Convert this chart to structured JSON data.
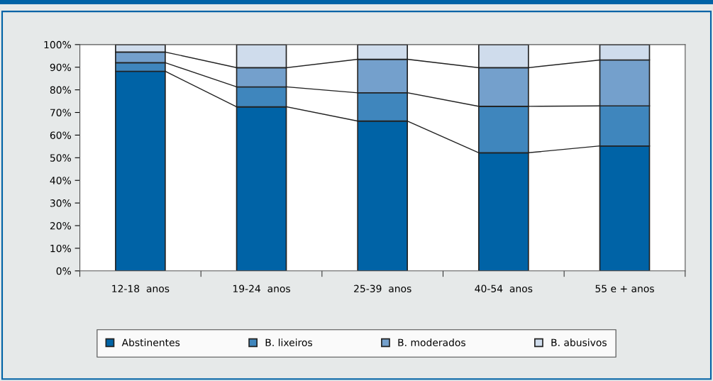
{
  "chart_data": {
    "type": "bar",
    "stacked": true,
    "categories": [
      "12-18  anos",
      "19-24  anos",
      "25-39  anos",
      "40-54  anos",
      "55 e + anos"
    ],
    "series": [
      {
        "name": "Abstinentes",
        "color": "#0063a6",
        "values": [
          88.2,
          72.5,
          66.2,
          52.2,
          55.2
        ]
      },
      {
        "name": "B. lixeiros",
        "color": "#3f86bd",
        "values": [
          3.8,
          8.8,
          12.5,
          20.5,
          17.7
        ]
      },
      {
        "name": "B. moderados",
        "color": "#74a0cc",
        "values": [
          4.7,
          8.5,
          14.8,
          17.1,
          20.3
        ]
      },
      {
        "name": "B. abusivos",
        "color": "#cfdcec",
        "values": [
          3.3,
          10.2,
          6.5,
          10.2,
          6.8
        ]
      }
    ],
    "ylim": [
      0,
      100
    ],
    "yticks": [
      {
        "value": 0,
        "label": "0%"
      },
      {
        "value": 10,
        "label": "10%"
      },
      {
        "value": 20,
        "label": "20%"
      },
      {
        "value": 30,
        "label": "30%"
      },
      {
        "value": 40,
        "label": "40%"
      },
      {
        "value": 50,
        "label": "50%"
      },
      {
        "value": 60,
        "label": "60%"
      },
      {
        "value": 70,
        "label": "70%"
      },
      {
        "value": 80,
        "label": "80%"
      },
      {
        "value": 90,
        "label": "90%"
      },
      {
        "value": 100,
        "label": "100%"
      }
    ],
    "grid": false,
    "legend": "bottom"
  }
}
